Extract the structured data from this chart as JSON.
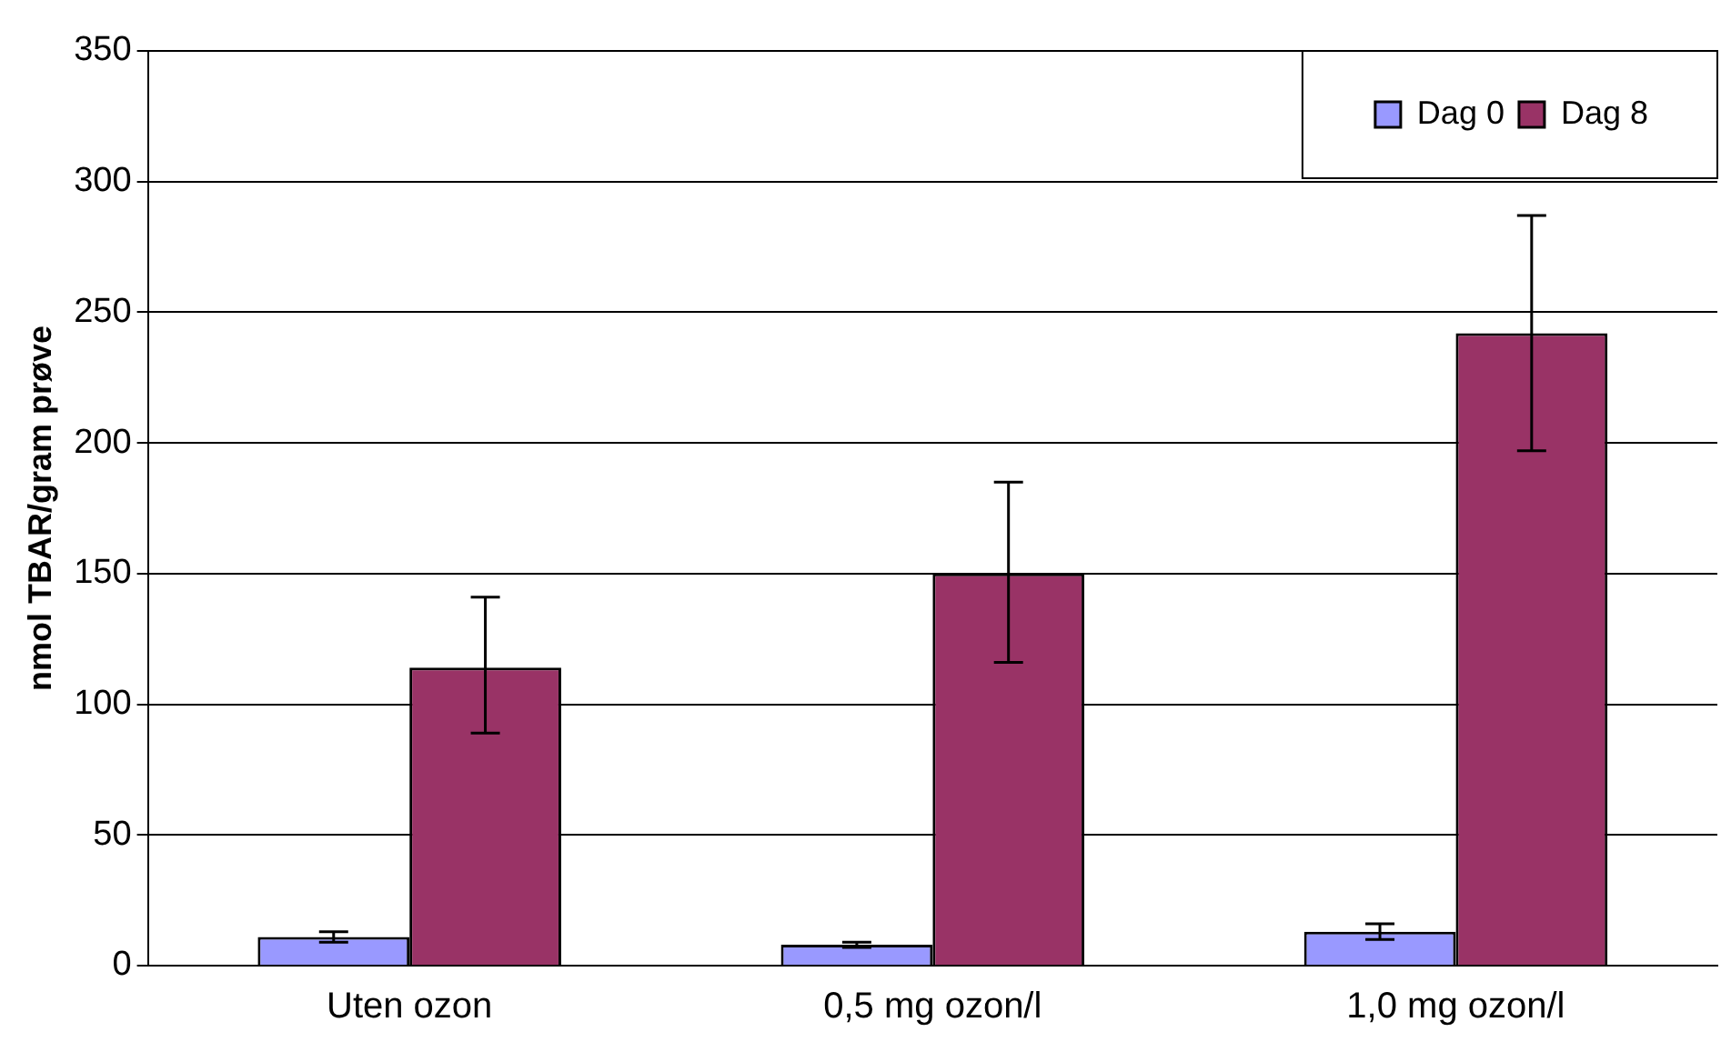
{
  "chart_data": {
    "type": "bar",
    "ylabel": "nmol TBAR/gram prøve",
    "categories": [
      "Uten ozon",
      "0,5 mg ozon/l",
      "1,0 mg ozon/l"
    ],
    "series": [
      {
        "name": "Dag 0",
        "color": "#9999ff",
        "values": [
          11,
          8,
          13
        ],
        "errors": [
          2,
          1,
          3
        ]
      },
      {
        "name": "Dag 8",
        "color": "#993366",
        "values": [
          114,
          150,
          242
        ],
        "errors": [
          [
            89,
            141
          ],
          [
            116,
            185
          ],
          [
            197,
            287
          ]
        ]
      }
    ],
    "ylim": [
      0,
      350
    ],
    "yticks": [
      0,
      50,
      100,
      150,
      200,
      250,
      300,
      350
    ],
    "grid": "y",
    "legend": "top right"
  }
}
